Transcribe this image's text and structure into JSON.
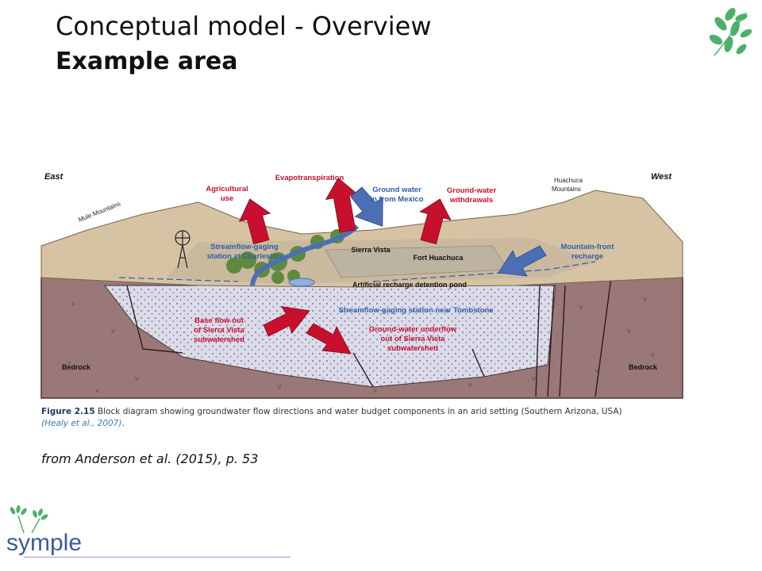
{
  "slide": {
    "title_line1": "Conceptual model - Overview",
    "title_line2": "Example area",
    "source_note": "from Anderson et al. (2015), p. 53"
  },
  "figure": {
    "labels": {
      "east": "East",
      "west": "West",
      "mule_mountains": "Mule Mountains",
      "huachuca_1": "Huachuca",
      "huachuca_2": "Mountains",
      "agri_1": "Agricultural",
      "agri_2": "use",
      "evapo": "Evapotranspiration",
      "gw_mexico_1": "Ground water",
      "gw_mexico_2": "in from Mexico",
      "gw_withdraw_1": "Ground-water",
      "gw_withdraw_2": "withdrawals",
      "sf_charleston_1": "Streamflow-gaging",
      "sf_charleston_2": "station at Charleston",
      "sierra_vista": "Sierra Vista",
      "fort_huachuca": "Fort Huachuca",
      "mtn_front_1": "Mountain-front",
      "mtn_front_2": "recharge",
      "recharge_pond": "Artificial recharge detention pond",
      "sf_tombstone": "Streamflow-gaging station near Tombstone",
      "base_flow_1": "Base flow out",
      "base_flow_2": "of Sierra Vista",
      "base_flow_3": "subwatershed",
      "underflow_1": "Ground-water underflow",
      "underflow_2": "out of Sierra Vista",
      "underflow_3": "subwatershed",
      "bedrock_left": "Bedrock",
      "bedrock_right": "Bedrock"
    },
    "caption": {
      "figure_number": "Figure 2.15",
      "text": " Block diagram showing groundwater flow directions and water budget components in an arid setting (Southern Arizona, USA)",
      "reference": "(Healy et al., 2007)",
      "end": "."
    }
  },
  "logo": {
    "text": "symple"
  },
  "colors": {
    "outflow_arrow": "#c8102e",
    "inflow_arrow": "#4a6fb5",
    "label_red": "#c8102e",
    "label_blue": "#2f5ea8",
    "bedrock": "#9a7878",
    "aquifer": "#d8dcef",
    "mountains": "#d6c3a4",
    "leaf_green": "#4db06a"
  }
}
